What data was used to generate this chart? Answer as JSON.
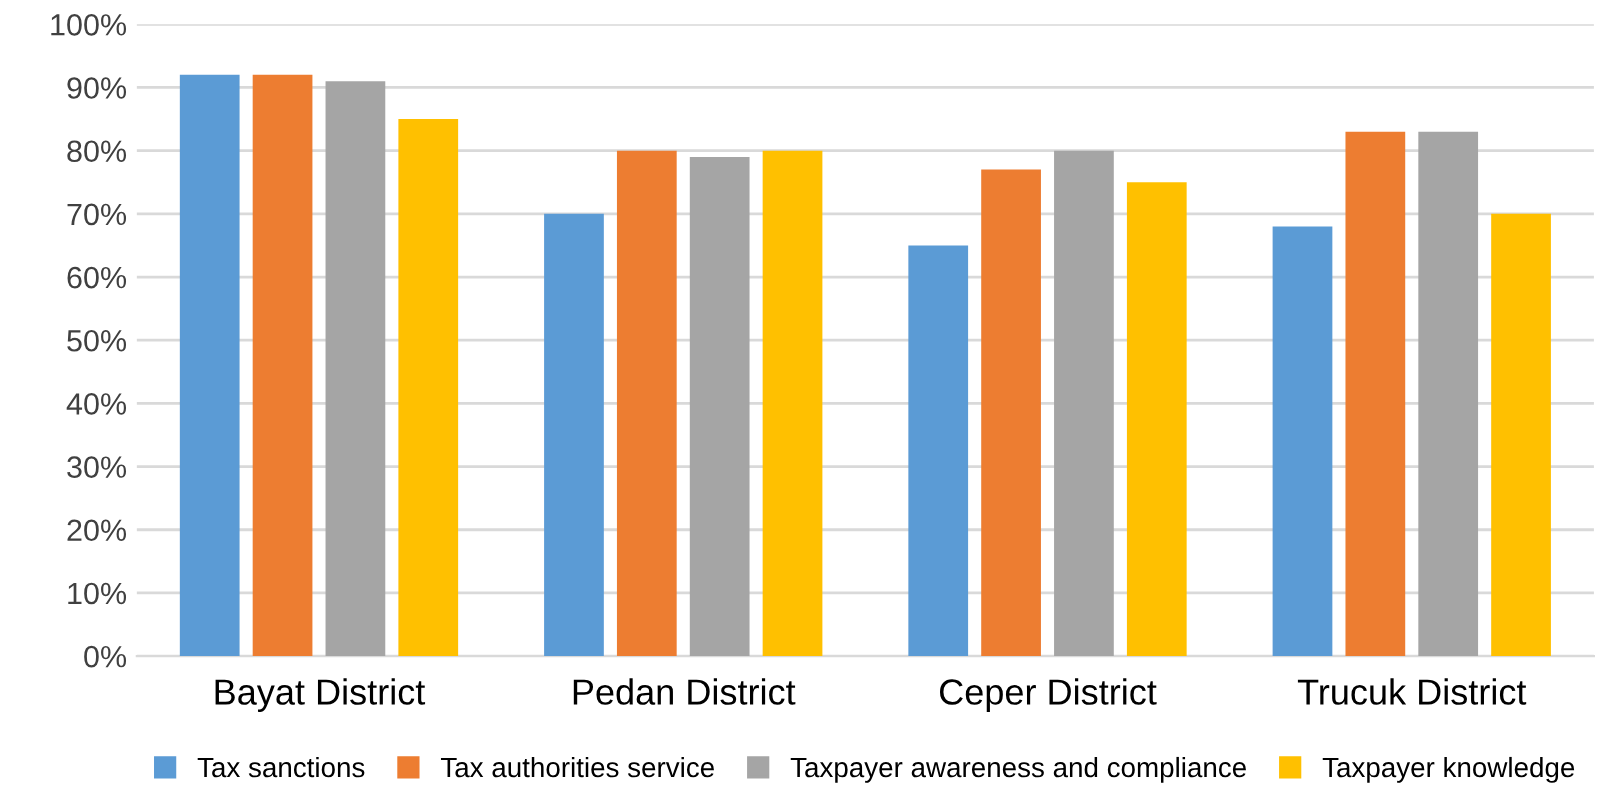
{
  "chart_data": {
    "type": "bar",
    "categories": [
      "Bayat District",
      "Pedan District",
      "Ceper District",
      "Trucuk District"
    ],
    "series": [
      {
        "name": "Tax sanctions",
        "color": "#5b9bd5",
        "values": [
          92,
          70,
          65,
          68
        ]
      },
      {
        "name": "Tax authorities service",
        "color": "#ed7d31",
        "values": [
          92,
          80,
          77,
          83
        ]
      },
      {
        "name": "Taxpayer awareness and compliance",
        "color": "#a5a5a5",
        "values": [
          91,
          79,
          80,
          83
        ]
      },
      {
        "name": "Taxpayer knowledge",
        "color": "#ffc000",
        "values": [
          85,
          80,
          75,
          70
        ]
      }
    ],
    "ylim": [
      0,
      100
    ],
    "yticks": [
      {
        "value": 0,
        "label": "0%"
      },
      {
        "value": 10,
        "label": "10%"
      },
      {
        "value": 20,
        "label": "20%"
      },
      {
        "value": 30,
        "label": "30%"
      },
      {
        "value": 40,
        "label": "40%"
      },
      {
        "value": 50,
        "label": "50%"
      },
      {
        "value": 60,
        "label": "60%"
      },
      {
        "value": 70,
        "label": "70%"
      },
      {
        "value": 80,
        "label": "80%"
      },
      {
        "value": 90,
        "label": "90%"
      },
      {
        "value": 100,
        "label": "100%"
      }
    ],
    "grid": "y",
    "legend": "bottom"
  }
}
